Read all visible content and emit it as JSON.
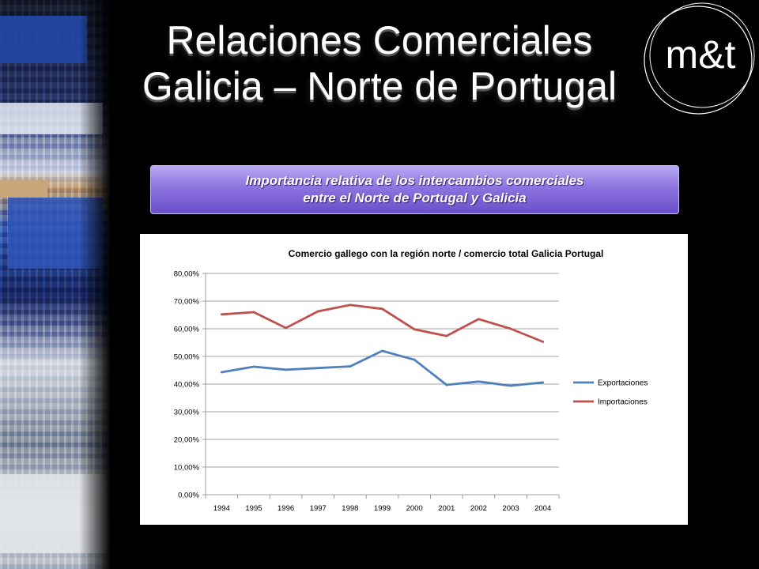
{
  "slide": {
    "title_line1": "Relaciones Comerciales",
    "title_line2": "Galicia – Norte de Portugal",
    "banner_line1": "Importancia relativa de los intercambios comerciales",
    "banner_line2": "entre el Norte de Portugal y Galicia",
    "logo_text": "m&t"
  },
  "chart_data": {
    "type": "line",
    "title": "Comercio gallego con la región norte / comercio total Galicia Portugal",
    "xlabel": "",
    "ylabel": "",
    "categories": [
      "1994",
      "1995",
      "1996",
      "1997",
      "1998",
      "1999",
      "2000",
      "2001",
      "2002",
      "2003",
      "2004"
    ],
    "y_ticks": [
      "0,00%",
      "10,00%",
      "20,00%",
      "30,00%",
      "40,00%",
      "50,00%",
      "60,00%",
      "70,00%",
      "80,00%"
    ],
    "ylim": [
      0,
      80
    ],
    "grid": true,
    "legend_position": "right",
    "series": [
      {
        "name": "Exportaciones",
        "color": "#4f81bd",
        "values": [
          44.3,
          46.3,
          45.2,
          45.8,
          46.4,
          52.0,
          48.8,
          39.7,
          40.9,
          39.4,
          40.6
        ]
      },
      {
        "name": "Importaciones",
        "color": "#c0504d",
        "values": [
          65.2,
          66.0,
          60.3,
          66.3,
          68.6,
          67.2,
          59.8,
          57.4,
          63.5,
          60.0,
          55.3
        ]
      }
    ]
  }
}
